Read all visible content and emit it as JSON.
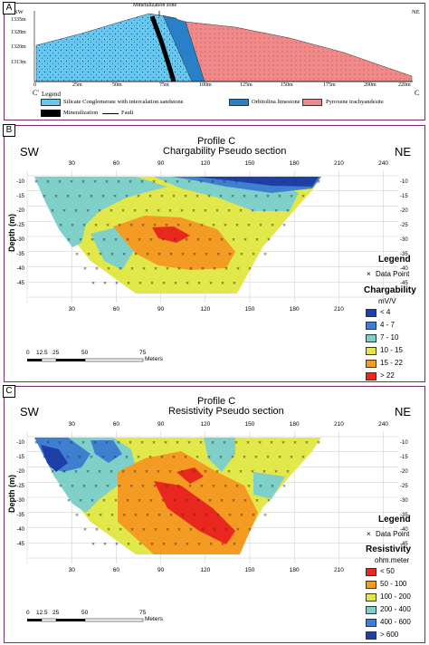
{
  "panelA": {
    "tag": "A",
    "sw": "SW",
    "ne": "NE",
    "title_label": "Mineralization zone",
    "elevations": [
      "1335m",
      "1328m",
      "1320m",
      "1313m"
    ],
    "distance_ticks": [
      "0",
      "25m",
      "50m",
      "75m",
      "100m",
      "125m",
      "150m",
      "175m",
      "200m",
      "220m"
    ],
    "c_left": "C'",
    "c_right": "C",
    "legend": {
      "title": "Legend",
      "items": [
        {
          "label": "Silicate Conglomerate with intercalation sandstone",
          "color": "#66c8f0"
        },
        {
          "label": "Orbitolina limestone",
          "color": "#2a7fc9"
        },
        {
          "label": "Pyroxene trachyandesite",
          "color": "#f08a8a"
        },
        {
          "label": "Mineralization",
          "color": "#000000"
        },
        {
          "label": "Fault",
          "color": "#000000"
        }
      ]
    }
  },
  "panelB": {
    "tag": "B",
    "title1": "Profile C",
    "title2": "Chargability Pseudo section",
    "sw": "SW",
    "ne": "NE",
    "top_ticks": [
      "30",
      "60",
      "90",
      "120",
      "150",
      "180",
      "210",
      "240"
    ],
    "bottom_ticks": [
      "30",
      "60",
      "90",
      "120",
      "150",
      "180",
      "210"
    ],
    "depth_ticks": [
      "-10",
      "-15",
      "-20",
      "-25",
      "-30",
      "-35",
      "-40",
      "-45"
    ],
    "ylabel": "Depth (m)",
    "legend_title": "Legend",
    "data_point_label": "Data Point",
    "var_title": "Chargability",
    "unit": "mV/V",
    "classes": [
      {
        "label": "< 4",
        "color": "#1f3fa8"
      },
      {
        "label": "4 - 7",
        "color": "#3f7fd0"
      },
      {
        "label": "7 - 10",
        "color": "#7fd0c8"
      },
      {
        "label": "10 - 15",
        "color": "#e2e84a"
      },
      {
        "label": "15 - 22",
        "color": "#f49b24"
      },
      {
        "label": "> 22",
        "color": "#e8281e"
      }
    ],
    "scale_ticks": [
      "0",
      "12.5",
      "25",
      "50",
      "75"
    ],
    "scale_unit": "Meters"
  },
  "panelC": {
    "tag": "C",
    "title1": "Profile C",
    "title2": "Resistivity Pseudo section",
    "sw": "SW",
    "ne": "NE",
    "top_ticks": [
      "30",
      "60",
      "90",
      "120",
      "150",
      "180",
      "210",
      "240"
    ],
    "bottom_ticks": [
      "30",
      "60",
      "90",
      "120",
      "150",
      "180",
      "210"
    ],
    "depth_ticks": [
      "-10",
      "-15",
      "-20",
      "-25",
      "-30",
      "-35",
      "-40",
      "-45"
    ],
    "ylabel": "Depth (m)",
    "legend_title": "Legend",
    "data_point_label": "Data Point",
    "var_title": "Resistivity",
    "unit": "ohm.meter",
    "classes": [
      {
        "label": "< 50",
        "color": "#e8281e"
      },
      {
        "label": "50 - 100",
        "color": "#f49b24"
      },
      {
        "label": "100 - 200",
        "color": "#e2e84a"
      },
      {
        "label": "200 - 400",
        "color": "#7fd0c8"
      },
      {
        "label": "400 - 600",
        "color": "#3f7fd0"
      },
      {
        "label": "> 600",
        "color": "#1f3fa8"
      }
    ],
    "scale_ticks": [
      "0",
      "12.5",
      "25",
      "50",
      "75"
    ],
    "scale_unit": "Meters"
  }
}
